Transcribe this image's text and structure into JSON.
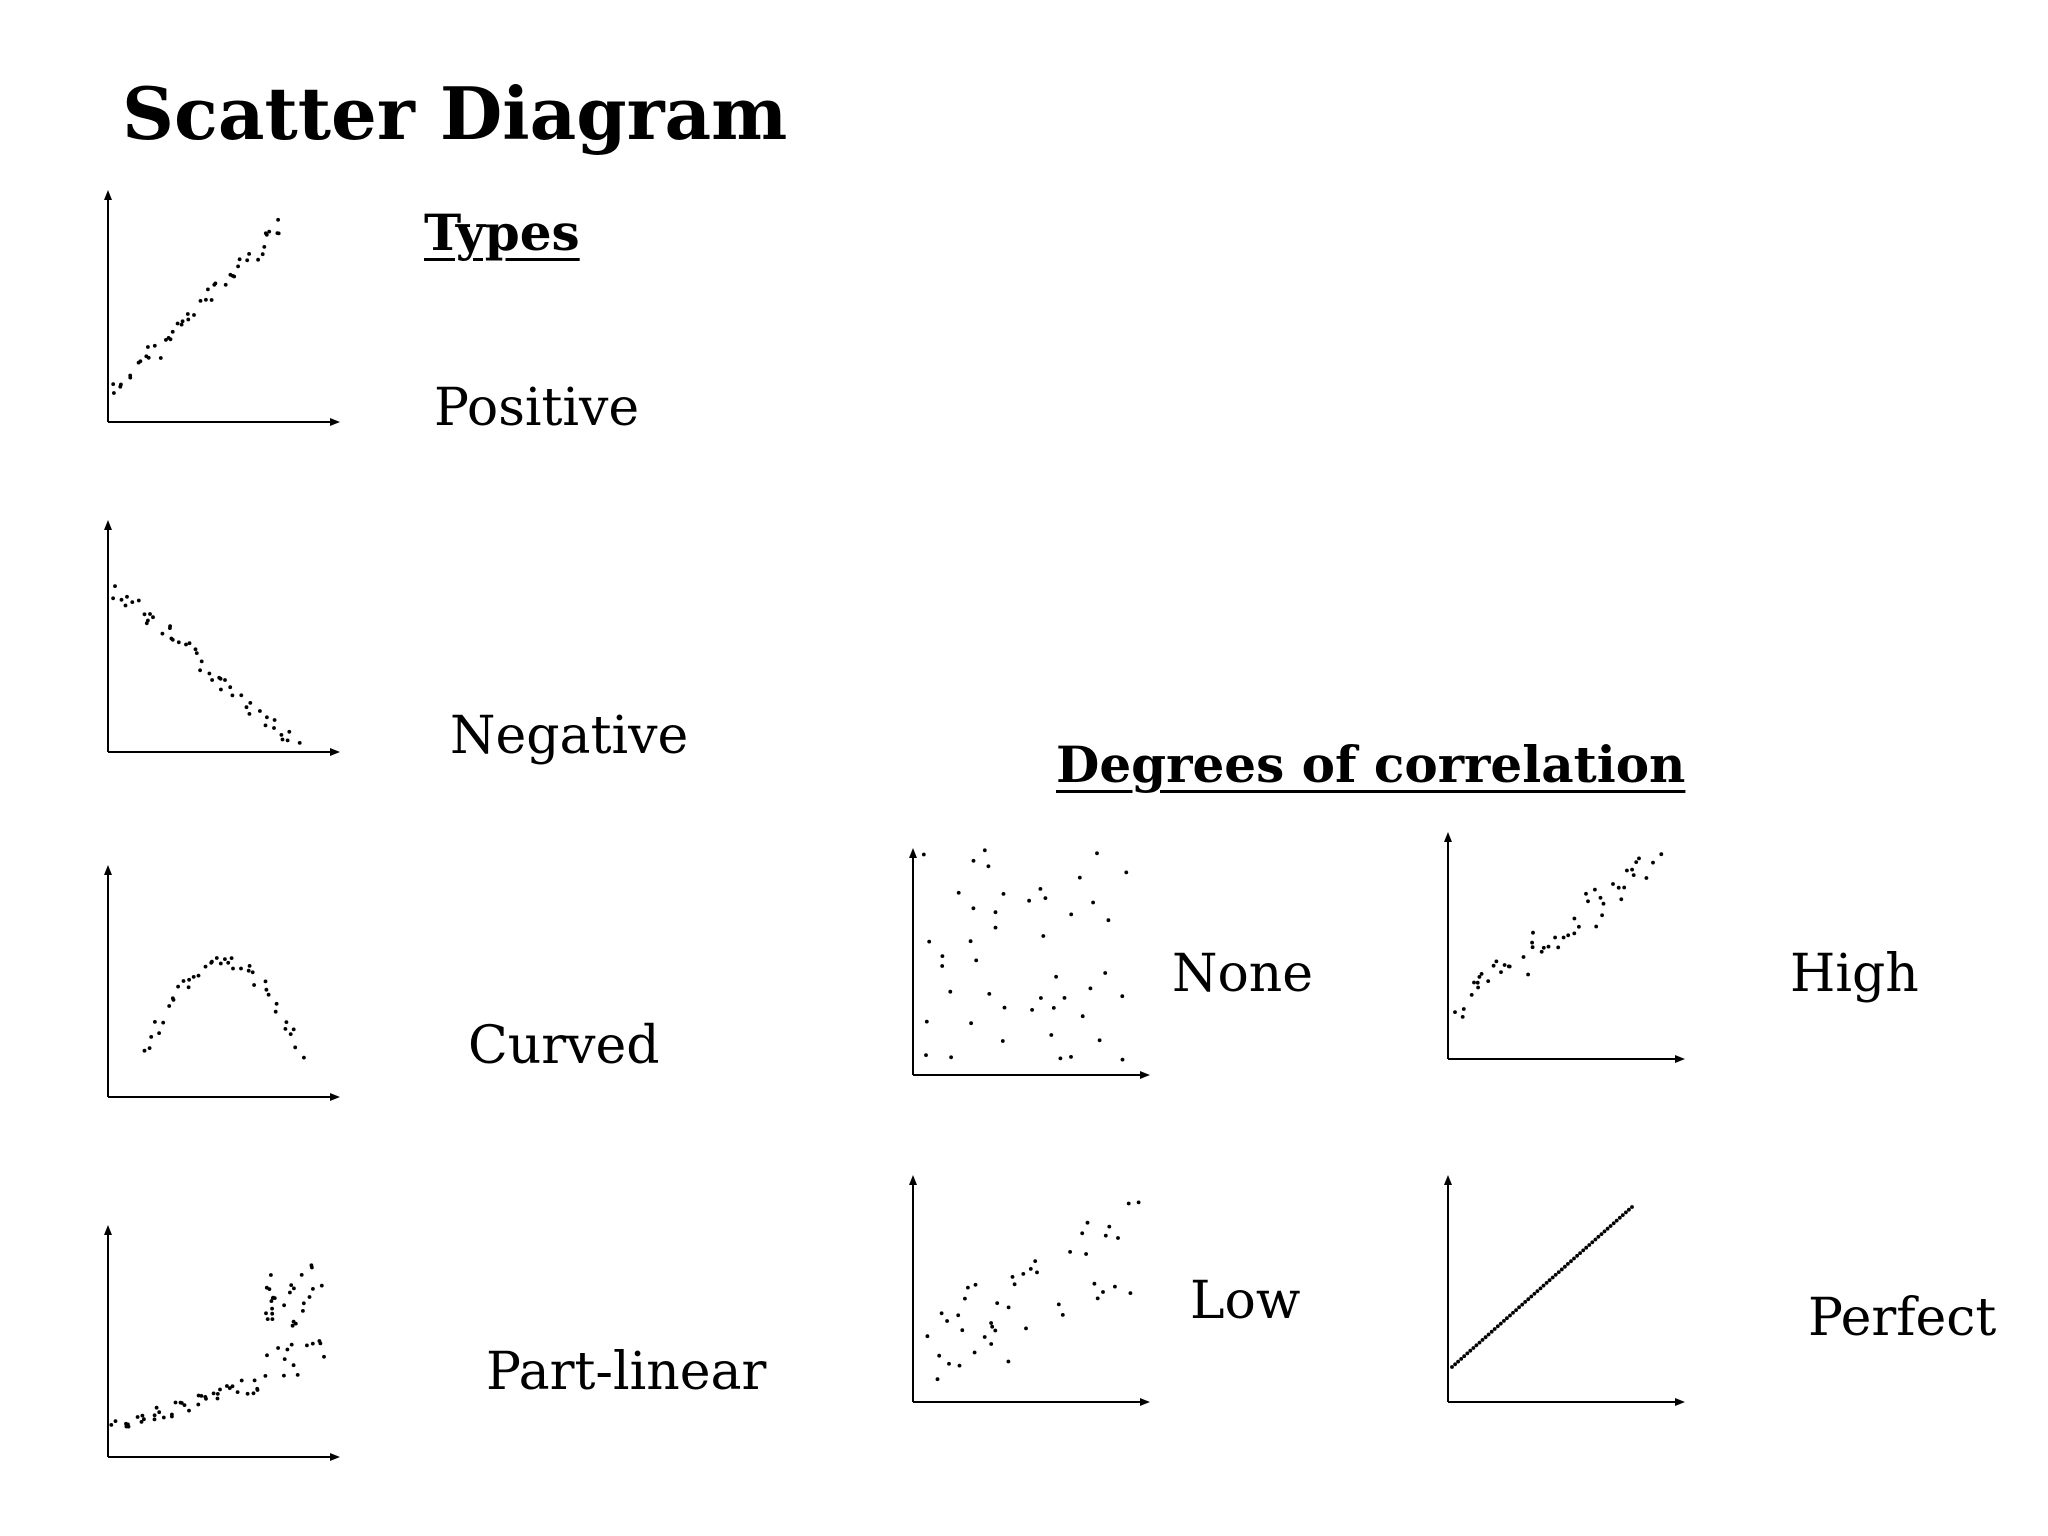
{
  "title": "Scatter Diagram",
  "types_heading": "Types",
  "degrees_heading": "Degrees of correlation",
  "plots": {
    "positive": "Positive",
    "negative": "Negative",
    "curved": "Curved",
    "part_linear": "Part-linear",
    "none": "None",
    "high": "High",
    "low": "Low",
    "perfect": "Perfect"
  }
}
